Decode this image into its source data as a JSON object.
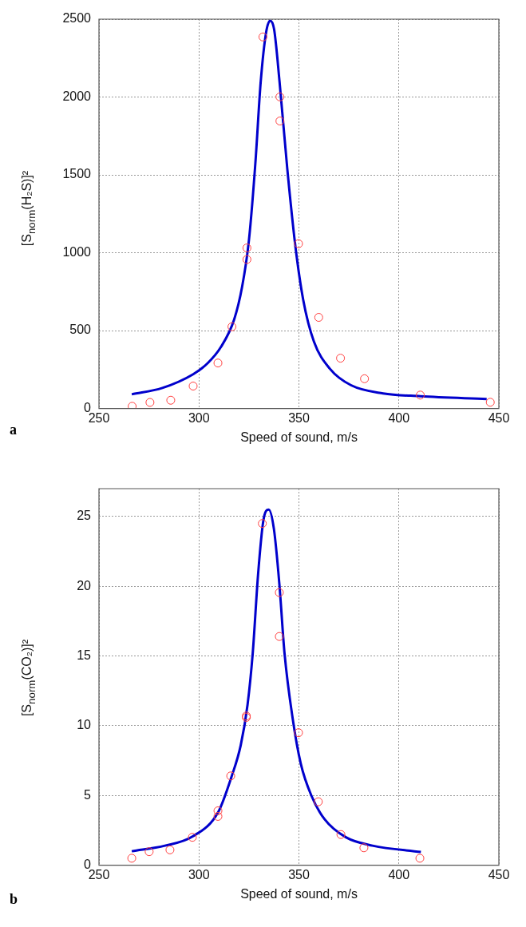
{
  "chart_data": [
    {
      "type": "scatter",
      "xlabel": "Speed of sound, m/s",
      "ylabel": "[S$_{norm}$(H₂S)]²",
      "annotations": [
        "a"
      ],
      "xlim": [
        250,
        450
      ],
      "xticks": [
        250,
        300,
        350,
        400,
        450
      ],
      "ylim": [
        0,
        2500
      ],
      "yticks": [
        0,
        500,
        1000,
        1500,
        2000,
        2500
      ],
      "grid": true,
      "legend": false,
      "series": [
        {
          "type": "line",
          "color": "#0000cc",
          "marker": "none",
          "x": [
            266.4,
            281.7,
            297.1,
            304.3,
            311,
            317.6,
            321.6,
            325,
            328.2,
            330.9,
            333.6,
            335.6,
            337.6,
            340.3,
            344.2,
            348.2,
            352.2,
            357.5,
            365.5,
            376.1,
            392.1,
            410.7,
            443.9
          ],
          "values": [
            91,
            132,
            220,
            290,
            395,
            571,
            782,
            1080,
            1572,
            2099,
            2416,
            2490,
            2434,
            2100,
            1537,
            1045,
            694,
            430,
            255,
            149,
            97,
            79,
            61
          ]
        },
        {
          "type": "scatter",
          "color": "#ff4040",
          "marker": "circle",
          "x": [
            266.6,
            275.5,
            285.9,
            297.1,
            309.5,
            316.5,
            324,
            324,
            332,
            340.5,
            340.5,
            349.8,
            359.9,
            370.8,
            382.8,
            410.7,
            445.7
          ],
          "values": [
            14,
            39,
            53,
            144,
            292,
            525,
            1031,
            957,
            2386,
            2001,
            1846,
            1058,
            585,
            323,
            191,
            86,
            40
          ]
        }
      ]
    },
    {
      "type": "scatter",
      "xlabel": "Speed of sound, m/s",
      "ylabel": "[S$_{norm}$(CO₂)]²",
      "annotations": [
        "b"
      ],
      "xlim": [
        250,
        450
      ],
      "xticks": [
        250,
        300,
        350,
        400,
        450
      ],
      "ylim": [
        0,
        27
      ],
      "yticks": [
        0,
        5,
        10,
        15,
        20,
        25
      ],
      "grid": true,
      "legend": false,
      "series": [
        {
          "type": "line",
          "color": "#0000cc",
          "marker": "none",
          "x": [
            266.4,
            283,
            296.7,
            309.6,
            316.3,
            320.9,
            324.3,
            326.9,
            329.6,
            332.2,
            334.9,
            337.5,
            340.2,
            342.8,
            346.9,
            350.9,
            356.2,
            362.8,
            373.5,
            386.8,
            411
          ],
          "values": [
            1.0,
            1.4,
            2.05,
            3.8,
            6.35,
            8.6,
            11.5,
            15.2,
            20.9,
            24.7,
            25.5,
            24.1,
            20.2,
            15.2,
            10.5,
            7.3,
            5.0,
            3.3,
            2.0,
            1.4,
            0.95
          ]
        },
        {
          "type": "scatter",
          "color": "#ff4040",
          "marker": "circle",
          "x": [
            266.4,
            275.1,
            285.5,
            296.7,
            309.5,
            309.5,
            315.9,
            323.7,
            323.7,
            331.7,
            340.2,
            340.2,
            349.8,
            359.7,
            371,
            382.5,
            410.5
          ],
          "values": [
            0.5,
            0.97,
            1.1,
            2.0,
            3.9,
            3.5,
            6.4,
            10.7,
            10.6,
            24.5,
            19.55,
            16.4,
            9.5,
            4.55,
            2.2,
            1.25,
            0.5
          ]
        }
      ]
    }
  ]
}
